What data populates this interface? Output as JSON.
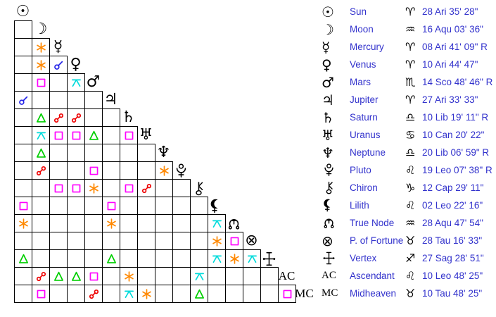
{
  "colors": {
    "text_blue": "#3232cc",
    "glyph_black": "#000000",
    "grid_line": "#000000",
    "background": "#ffffff",
    "aspect": {
      "conjunction": "#2323e8",
      "sextile": "#ff8800",
      "square": "#ff00ff",
      "trine": "#00cf00",
      "opposition": "#ee0000",
      "quincunx": "#00dbdb"
    }
  },
  "planets": [
    {
      "id": "sun",
      "name": "Sun",
      "glyph": {
        "type": "char",
        "value": "☉"
      },
      "glyph_icon": "sun-icon",
      "sign": "Aries",
      "sign_glyph": "♈",
      "position": "28 Ari 35' 28\""
    },
    {
      "id": "moon",
      "name": "Moon",
      "glyph": {
        "type": "char",
        "value": "☽"
      },
      "glyph_icon": "moon-icon",
      "sign": "Aquarius",
      "sign_glyph": "♒",
      "position": "16 Aqu 03' 36\""
    },
    {
      "id": "mercury",
      "name": "Mercury",
      "glyph": {
        "type": "char",
        "value": "☿"
      },
      "glyph_icon": "mercury-icon",
      "sign": "Aries",
      "sign_glyph": "♈",
      "position": "08 Ari 41' 09\" R"
    },
    {
      "id": "venus",
      "name": "Venus",
      "glyph": {
        "type": "char",
        "value": "♀"
      },
      "glyph_icon": "venus-icon",
      "sign": "Aries",
      "sign_glyph": "♈",
      "position": "10 Ari 44' 47\""
    },
    {
      "id": "mars",
      "name": "Mars",
      "glyph": {
        "type": "char",
        "value": "♂"
      },
      "glyph_icon": "mars-icon",
      "sign": "Scorpio",
      "sign_glyph": "♏",
      "position": "14 Sco 48' 46\" R"
    },
    {
      "id": "jupiter",
      "name": "Jupiter",
      "glyph": {
        "type": "char",
        "value": "♃"
      },
      "glyph_icon": "jupiter-icon",
      "sign": "Aries",
      "sign_glyph": "♈",
      "position": "27 Ari 33' 33\""
    },
    {
      "id": "saturn",
      "name": "Saturn",
      "glyph": {
        "type": "char",
        "value": "♄"
      },
      "glyph_icon": "saturn-icon",
      "sign": "Libra",
      "sign_glyph": "♎",
      "position": "10 Lib 19' 11\" R"
    },
    {
      "id": "uranus",
      "name": "Uranus",
      "glyph": {
        "type": "char",
        "value": "♅"
      },
      "glyph_icon": "uranus-icon",
      "sign": "Cancer",
      "sign_glyph": "♋",
      "position": "10 Can 20' 22\""
    },
    {
      "id": "neptune",
      "name": "Neptune",
      "glyph": {
        "type": "char",
        "value": "♆"
      },
      "glyph_icon": "neptune-icon",
      "sign": "Libra",
      "sign_glyph": "♎",
      "position": "20 Lib 06' 59\" R"
    },
    {
      "id": "pluto",
      "name": "Pluto",
      "glyph": {
        "type": "svg",
        "value": "pluto"
      },
      "glyph_icon": "pluto-icon",
      "sign": "Leo",
      "sign_glyph": "♌",
      "position": "19 Leo 07' 38\" R"
    },
    {
      "id": "chiron",
      "name": "Chiron",
      "glyph": {
        "type": "svg",
        "value": "chiron"
      },
      "glyph_icon": "chiron-icon",
      "sign": "Capricorn",
      "sign_glyph": "♑",
      "position": "12 Cap 29' 11\""
    },
    {
      "id": "lilith",
      "name": "Lilith",
      "glyph": {
        "type": "svg",
        "value": "lilith"
      },
      "glyph_icon": "lilith-icon",
      "sign": "Leo",
      "sign_glyph": "♌",
      "position": "02 Leo 22' 16\""
    },
    {
      "id": "truenode",
      "name": "True Node",
      "glyph": {
        "type": "svg",
        "value": "truenode"
      },
      "glyph_icon": "true-node-icon",
      "sign": "Aquarius",
      "sign_glyph": "♒",
      "position": "28 Aqu 47' 54\""
    },
    {
      "id": "pfortune",
      "name": "P. of Fortune",
      "glyph": {
        "type": "char",
        "value": "⊗"
      },
      "glyph_icon": "part-of-fortune-icon",
      "sign": "Taurus",
      "sign_glyph": "♉",
      "position": "28 Tau 16' 33\""
    },
    {
      "id": "vertex",
      "name": "Vertex",
      "glyph": {
        "type": "svg",
        "value": "vertex"
      },
      "glyph_icon": "vertex-icon",
      "sign": "Sagittarius",
      "sign_glyph": "♐",
      "position": "27 Sag 28' 51\""
    },
    {
      "id": "ascendant",
      "name": "Ascendant",
      "glyph": {
        "type": "text",
        "value": "AC"
      },
      "glyph_icon": "ascendant-icon",
      "sign": "Leo",
      "sign_glyph": "♌",
      "position": "10 Leo 48' 25\""
    },
    {
      "id": "midheaven",
      "name": "Midheaven",
      "glyph": {
        "type": "text",
        "value": "MC"
      },
      "glyph_icon": "midheaven-icon",
      "sign": "Taurus",
      "sign_glyph": "♉",
      "position": "10 Tau 48' 25\""
    }
  ],
  "aspects": [
    {
      "row": "mercury",
      "col": "moon",
      "type": "sextile"
    },
    {
      "row": "venus",
      "col": "moon",
      "type": "sextile"
    },
    {
      "row": "venus",
      "col": "mercury",
      "type": "conjunction"
    },
    {
      "row": "mars",
      "col": "moon",
      "type": "square"
    },
    {
      "row": "mars",
      "col": "venus",
      "type": "quincunx"
    },
    {
      "row": "jupiter",
      "col": "sun",
      "type": "conjunction"
    },
    {
      "row": "saturn",
      "col": "moon",
      "type": "trine"
    },
    {
      "row": "saturn",
      "col": "mercury",
      "type": "opposition"
    },
    {
      "row": "saturn",
      "col": "venus",
      "type": "opposition"
    },
    {
      "row": "uranus",
      "col": "moon",
      "type": "quincunx"
    },
    {
      "row": "uranus",
      "col": "mercury",
      "type": "square"
    },
    {
      "row": "uranus",
      "col": "venus",
      "type": "square"
    },
    {
      "row": "uranus",
      "col": "mars",
      "type": "trine"
    },
    {
      "row": "uranus",
      "col": "saturn",
      "type": "square"
    },
    {
      "row": "neptune",
      "col": "moon",
      "type": "trine"
    },
    {
      "row": "pluto",
      "col": "moon",
      "type": "opposition"
    },
    {
      "row": "pluto",
      "col": "mars",
      "type": "square"
    },
    {
      "row": "pluto",
      "col": "neptune",
      "type": "sextile"
    },
    {
      "row": "chiron",
      "col": "mercury",
      "type": "square"
    },
    {
      "row": "chiron",
      "col": "venus",
      "type": "square"
    },
    {
      "row": "chiron",
      "col": "mars",
      "type": "sextile"
    },
    {
      "row": "chiron",
      "col": "saturn",
      "type": "square"
    },
    {
      "row": "chiron",
      "col": "uranus",
      "type": "opposition"
    },
    {
      "row": "lilith",
      "col": "sun",
      "type": "square"
    },
    {
      "row": "lilith",
      "col": "jupiter",
      "type": "square"
    },
    {
      "row": "truenode",
      "col": "sun",
      "type": "sextile"
    },
    {
      "row": "truenode",
      "col": "jupiter",
      "type": "sextile"
    },
    {
      "row": "truenode",
      "col": "lilith",
      "type": "quincunx"
    },
    {
      "row": "pfortune",
      "col": "lilith",
      "type": "sextile"
    },
    {
      "row": "pfortune",
      "col": "truenode",
      "type": "square"
    },
    {
      "row": "vertex",
      "col": "sun",
      "type": "trine"
    },
    {
      "row": "vertex",
      "col": "jupiter",
      "type": "trine"
    },
    {
      "row": "vertex",
      "col": "lilith",
      "type": "quincunx"
    },
    {
      "row": "vertex",
      "col": "truenode",
      "type": "sextile"
    },
    {
      "row": "vertex",
      "col": "pfortune",
      "type": "quincunx"
    },
    {
      "row": "ascendant",
      "col": "moon",
      "type": "opposition"
    },
    {
      "row": "ascendant",
      "col": "mercury",
      "type": "trine"
    },
    {
      "row": "ascendant",
      "col": "venus",
      "type": "trine"
    },
    {
      "row": "ascendant",
      "col": "mars",
      "type": "square"
    },
    {
      "row": "ascendant",
      "col": "saturn",
      "type": "sextile"
    },
    {
      "row": "ascendant",
      "col": "chiron",
      "type": "quincunx"
    },
    {
      "row": "midheaven",
      "col": "moon",
      "type": "square"
    },
    {
      "row": "midheaven",
      "col": "mars",
      "type": "opposition"
    },
    {
      "row": "midheaven",
      "col": "saturn",
      "type": "quincunx"
    },
    {
      "row": "midheaven",
      "col": "uranus",
      "type": "sextile"
    },
    {
      "row": "midheaven",
      "col": "chiron",
      "type": "trine"
    },
    {
      "row": "midheaven",
      "col": "ascendant",
      "type": "square"
    }
  ]
}
